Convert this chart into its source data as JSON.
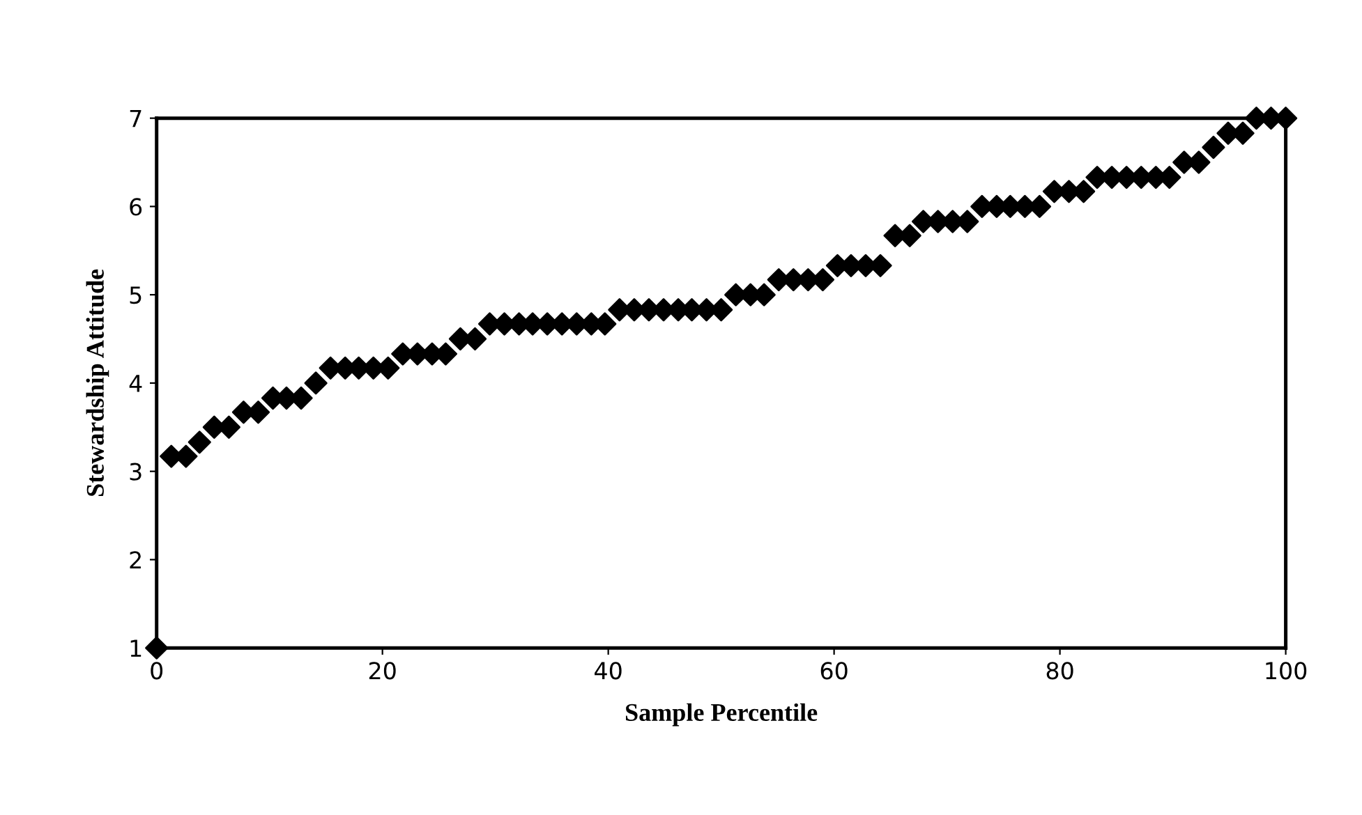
{
  "chart_data": {
    "type": "scatter",
    "xlabel": "Sample Percentile",
    "ylabel": "Stewardship Attitude",
    "x": [
      0,
      1.3,
      2.6,
      3.8,
      5.1,
      6.4,
      7.7,
      9.0,
      10.3,
      11.5,
      12.8,
      14.1,
      15.4,
      16.7,
      17.9,
      19.2,
      20.5,
      21.8,
      23.1,
      24.4,
      25.6,
      26.9,
      28.2,
      29.5,
      30.8,
      32.1,
      33.3,
      34.6,
      35.9,
      37.2,
      38.5,
      39.7,
      41.0,
      42.3,
      43.6,
      44.9,
      46.2,
      47.4,
      48.7,
      50.0,
      51.3,
      52.6,
      53.8,
      55.1,
      56.4,
      57.7,
      59.0,
      60.3,
      61.5,
      62.8,
      64.1,
      65.4,
      66.7,
      67.9,
      69.2,
      70.5,
      71.8,
      73.1,
      74.4,
      75.6,
      76.9,
      78.2,
      79.5,
      80.8,
      82.1,
      83.3,
      84.6,
      85.9,
      87.2,
      88.5,
      89.7,
      91.0,
      92.3,
      93.6,
      94.9,
      96.2,
      97.4,
      98.7,
      100
    ],
    "values": [
      1.0,
      3.17,
      3.17,
      3.33,
      3.5,
      3.5,
      3.67,
      3.67,
      3.83,
      3.83,
      3.83,
      4.0,
      4.17,
      4.17,
      4.17,
      4.17,
      4.17,
      4.33,
      4.33,
      4.33,
      4.33,
      4.5,
      4.5,
      4.67,
      4.67,
      4.67,
      4.67,
      4.67,
      4.67,
      4.67,
      4.67,
      4.67,
      4.83,
      4.83,
      4.83,
      4.83,
      4.83,
      4.83,
      4.83,
      4.83,
      5.0,
      5.0,
      5.0,
      5.17,
      5.17,
      5.17,
      5.17,
      5.33,
      5.33,
      5.33,
      5.33,
      5.67,
      5.67,
      5.83,
      5.83,
      5.83,
      5.83,
      6.0,
      6.0,
      6.0,
      6.0,
      6.0,
      6.17,
      6.17,
      6.17,
      6.33,
      6.33,
      6.33,
      6.33,
      6.33,
      6.33,
      6.5,
      6.5,
      6.67,
      6.83,
      6.83,
      7.0,
      7.0,
      7.0
    ],
    "color": "#000000",
    "marker": "diamond",
    "xlim": [
      0,
      100
    ],
    "ylim": [
      1,
      7
    ],
    "xticks": [
      0,
      20,
      40,
      60,
      80,
      100
    ],
    "yticks": [
      1,
      2,
      3,
      4,
      5,
      6,
      7
    ]
  }
}
